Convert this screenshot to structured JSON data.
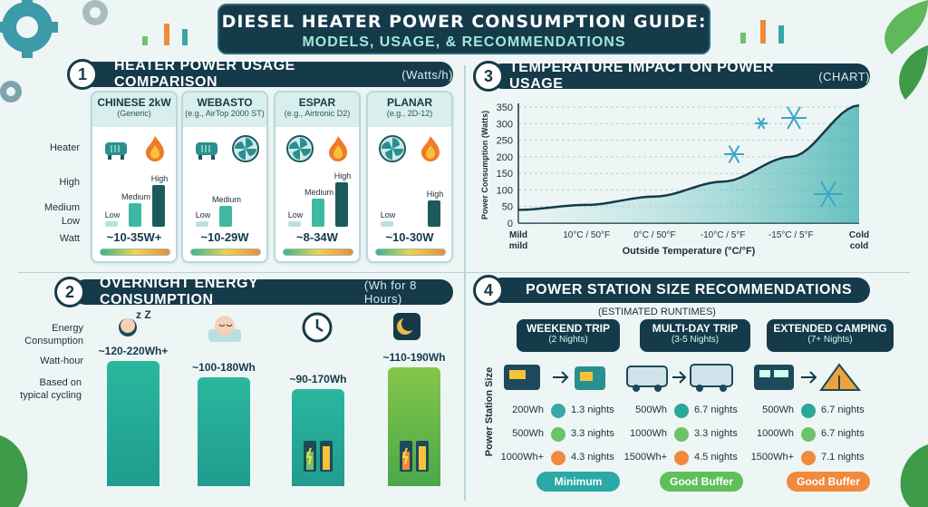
{
  "title": {
    "line1": "Diesel Heater Power Consumption Guide:",
    "line2": "MODELS, USAGE, & RECOMMENDATIONS"
  },
  "section1": {
    "number": "1",
    "title": "HEATER POWER USAGE COMPARISON",
    "subtitle": "(Watts/h)",
    "row_labels": {
      "heater": "Heater",
      "high": "High",
      "medium": "Medium",
      "low": "Low",
      "watt": "Watt"
    },
    "cards": [
      {
        "name": "CHINESE 2kW",
        "model": "(Generic)",
        "low": "Low",
        "medium": "Medium",
        "high": "High",
        "watt": "~10-35W+",
        "levels": [
          0.12,
          0.5,
          0.88
        ]
      },
      {
        "name": "WEBASTO",
        "model": "(e.g., AirTop 2000 ST)",
        "low": "Low",
        "medium": "Medium",
        "high": "",
        "watt": "~10-29W",
        "levels": [
          0.12,
          0.45,
          0
        ]
      },
      {
        "name": "ESPAR",
        "model": "(e.g., Airtronic D2)",
        "low": "Low",
        "medium": "Medium",
        "high": "High",
        "watt": "~8-34W",
        "levels": [
          0.12,
          0.6,
          0.95
        ]
      },
      {
        "name": "PLANAR",
        "model": "(e.g., 2D-12)",
        "low": "Low",
        "medium": "",
        "high": "High",
        "watt": "~10-30W",
        "levels": [
          0.12,
          0,
          0.55
        ]
      }
    ]
  },
  "section2": {
    "number": "2",
    "title": "OVERNIGHT ENERGY CONSUMPTION",
    "subtitle": "(Wh for 8 Hours)",
    "labels": {
      "energy": "Energy Consumption",
      "watthour": "Watt-hour",
      "based": "Based on typical cycling"
    },
    "zz": "z Z",
    "bars": [
      {
        "value": "~120-220Wh+",
        "level": 0.86
      },
      {
        "value": "~100-180Wh",
        "level": 0.75
      },
      {
        "value": "~90-170Wh",
        "level": 0.67
      },
      {
        "value": "~110-190Wh",
        "level": 0.82
      }
    ]
  },
  "section3": {
    "number": "3",
    "title": "TEMPERATURE IMPACT ON POWER USAGE",
    "subtitle": "(CHART)"
  },
  "chart_data": {
    "type": "area",
    "title": "TEMPERATURE IMPACT ON POWER USAGE",
    "xlabel": "Outside Temperature (°C/°F)",
    "ylabel": "Power Consumption (Watts)",
    "categories": [
      "Mild\nmild",
      "10°C / 50°F",
      "0°C / 50°F",
      "-10°C / 5°F",
      "-15°C / 5°F",
      "Cold\ncold"
    ],
    "series": [
      {
        "values": [
          40,
          55,
          80,
          125,
          200,
          355
        ]
      }
    ],
    "ylim": [
      0,
      350
    ],
    "yticks": [
      0,
      50,
      100,
      150,
      200,
      250,
      300,
      350
    ],
    "grid": true
  },
  "section4": {
    "number": "4",
    "title": "POWER STATION SIZE RECOMMENDATIONS",
    "subtitle": "(ESTIMATED RUNTIMES)",
    "side_label": "Power Station Size",
    "trips": [
      {
        "name": "WEEKEND TRIP",
        "duration": "(2 Nights)",
        "rows": [
          {
            "size": "200Wh",
            "runtime": "1.3 nights",
            "color": "#3aa6a8"
          },
          {
            "size": "500Wh",
            "runtime": "3.3 nights",
            "color": "#6cc36a"
          },
          {
            "size": "1000Wh+",
            "runtime": "4.3 nights",
            "color": "#f08a3c"
          }
        ],
        "badge": "Minimum",
        "badge_color": "#2aa9a6"
      },
      {
        "name": "MULTI-DAY TRIP",
        "duration": "(3-5 Nights)",
        "rows": [
          {
            "size": "500Wh",
            "runtime": "6.7 nights",
            "color": "#2aa79a"
          },
          {
            "size": "1000Wh",
            "runtime": "3.3 nights",
            "color": "#6cc36a"
          },
          {
            "size": "1500Wh+",
            "runtime": "4.5 nights",
            "color": "#f08a3c"
          }
        ],
        "badge": "Good Buffer",
        "badge_color": "#5fbf5a"
      },
      {
        "name": "EXTENDED CAMPING",
        "duration": "(7+ Nights)",
        "rows": [
          {
            "size": "500Wh",
            "runtime": "6.7 nights",
            "color": "#2aa79a"
          },
          {
            "size": "1000Wh",
            "runtime": "6.7 nights",
            "color": "#6cc36a"
          },
          {
            "size": "1500Wh+",
            "runtime": "7.1 nights",
            "color": "#f08a3c"
          }
        ],
        "badge": "Good Buffer",
        "badge_color": "#f08a3c"
      }
    ]
  },
  "colors": {
    "navy": "#153a4a",
    "teal": "#2aa9a6",
    "green": "#6cc36a",
    "orange": "#f08a3c"
  }
}
